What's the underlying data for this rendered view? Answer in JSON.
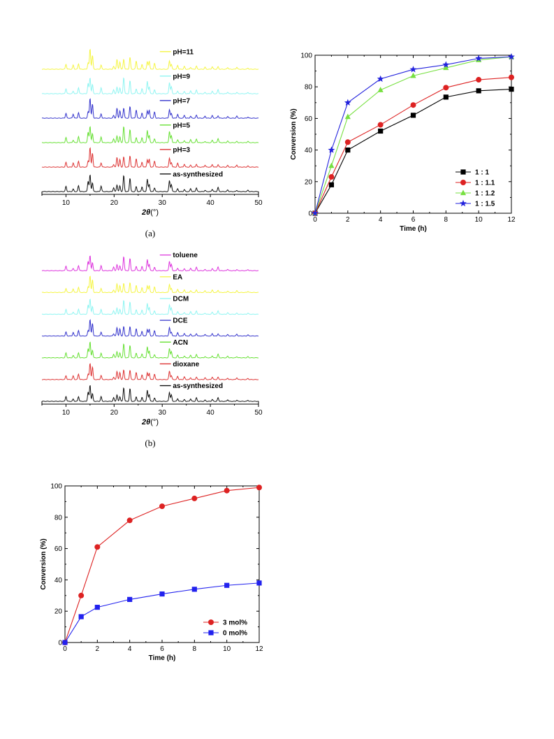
{
  "chart_data": [
    {
      "type": "line",
      "panel": "xrd-ph",
      "caption": "(a)",
      "xlabel_symbol": "2θ",
      "xlabel_unit": "(°)",
      "xlim": [
        5,
        50
      ],
      "xticks": [
        10,
        20,
        30,
        40,
        50
      ],
      "series": [
        {
          "name": "pH=11",
          "color": "#f5f542"
        },
        {
          "name": "pH=9",
          "color": "#8ff5f2"
        },
        {
          "name": "pH=7",
          "color": "#3333cc"
        },
        {
          "name": "pH=5",
          "color": "#66e033"
        },
        {
          "name": "pH=3",
          "color": "#dd3333"
        },
        {
          "name": "as-synthesized",
          "color": "#111111"
        }
      ]
    },
    {
      "type": "line",
      "panel": "conversion-ratio",
      "xlabel": "Time (h)",
      "ylabel": "Conversion (%)",
      "xlim": [
        0,
        12
      ],
      "ylim": [
        0,
        100
      ],
      "xticks": [
        0,
        2,
        4,
        6,
        8,
        10,
        12
      ],
      "yticks": [
        0,
        20,
        40,
        60,
        80,
        100
      ],
      "legend_position": "bottom-right",
      "x": [
        0,
        1,
        2,
        4,
        6,
        8,
        10,
        12
      ],
      "series": [
        {
          "name": "1 : 1",
          "marker": "square",
          "color": "#000000",
          "values": [
            0,
            18,
            40,
            52,
            62,
            73.5,
            77.5,
            78.5
          ]
        },
        {
          "name": "1 : 1.1",
          "marker": "circle",
          "color": "#dd2222",
          "values": [
            0,
            23,
            45,
            56,
            68.5,
            79.5,
            84.5,
            86
          ]
        },
        {
          "name": "1 : 1.2",
          "marker": "triangle",
          "color": "#77e040",
          "values": [
            0,
            30,
            61,
            78,
            87,
            92,
            97,
            99
          ]
        },
        {
          "name": "1 : 1.5",
          "marker": "star",
          "color": "#2222dd",
          "values": [
            0,
            40,
            70,
            85,
            91,
            94,
            98,
            99
          ]
        }
      ]
    },
    {
      "type": "line",
      "panel": "xrd-solvent",
      "caption": "(b)",
      "xlabel_symbol": "2θ",
      "xlabel_unit": "(°)",
      "xlim": [
        5,
        50
      ],
      "xticks": [
        10,
        20,
        30,
        40,
        50
      ],
      "series": [
        {
          "name": "toluene",
          "color": "#dd33dd"
        },
        {
          "name": "EA",
          "color": "#f5f542"
        },
        {
          "name": "DCM",
          "color": "#8ff5f2"
        },
        {
          "name": "DCE",
          "color": "#3333cc"
        },
        {
          "name": "ACN",
          "color": "#66e033"
        },
        {
          "name": "dioxane",
          "color": "#dd3333"
        },
        {
          "name": "as-synthesized",
          "color": "#111111"
        }
      ]
    },
    {
      "type": "line",
      "panel": "conversion-loading",
      "xlabel": "Time (h)",
      "ylabel": "Conversion (%)",
      "xlim": [
        0,
        12
      ],
      "ylim": [
        0,
        100
      ],
      "xticks": [
        0,
        2,
        4,
        6,
        8,
        10,
        12
      ],
      "yticks": [
        0,
        20,
        40,
        60,
        80,
        100
      ],
      "legend_position": "bottom-right",
      "x": [
        0,
        1,
        2,
        4,
        6,
        8,
        10,
        12
      ],
      "series": [
        {
          "name": "3 mol%",
          "marker": "circle",
          "color": "#dd2222",
          "values": [
            0,
            30,
            61,
            78,
            87,
            92,
            97,
            99
          ]
        },
        {
          "name": "0 mol%",
          "marker": "square",
          "color": "#2222ee",
          "values": [
            0,
            16.5,
            22.5,
            27.5,
            31,
            34,
            36.5,
            38
          ]
        }
      ]
    }
  ]
}
